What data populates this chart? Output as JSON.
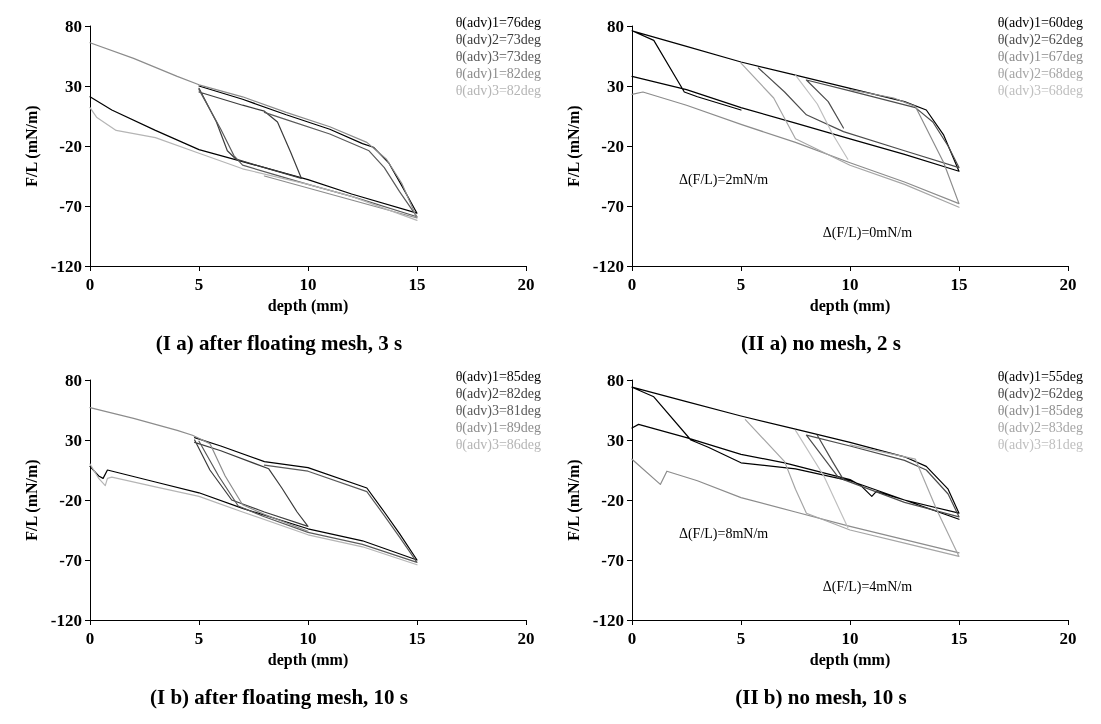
{
  "chart_data": [
    {
      "type": "line",
      "title": "(I a) after floating mesh, 3 s",
      "xlabel": "depth (mm)",
      "ylabel": "F/L (mN/m)",
      "xlim": [
        0,
        20
      ],
      "ylim": [
        -120,
        80
      ],
      "xticks": [
        0,
        5,
        10,
        15,
        20
      ],
      "yticks": [
        -120,
        -70,
        -20,
        30,
        80
      ],
      "legend": "top right",
      "series": [
        {
          "name": "θ(adv)1=76deg",
          "color": "#000000",
          "x": [
            0,
            1,
            3,
            5,
            7,
            10,
            12,
            15,
            14.3,
            13.7,
            13,
            12.5,
            11,
            9,
            7,
            5
          ],
          "values": [
            21,
            10,
            -7,
            -23,
            -33,
            -48,
            -60,
            -76,
            -53,
            -34,
            -21,
            -18,
            -6,
            6,
            19,
            30
          ]
        },
        {
          "name": "θ(adv)2=73deg",
          "color": "#3c3c3c",
          "x": [
            5,
            5.8,
            6.3,
            6.7,
            8,
            9.7,
            9.2,
            8.6,
            8,
            7,
            5
          ],
          "values": [
            28,
            0,
            -24,
            -31,
            -38,
            -47,
            -25,
            0,
            9,
            14,
            25
          ]
        },
        {
          "name": "θ(adv)3=73deg",
          "color": "#5a5a5a",
          "x": [
            5,
            6,
            6.6,
            7,
            8.5,
            9.8,
            10,
            12,
            15,
            14.2,
            13.5,
            12.8,
            11,
            9,
            8
          ],
          "values": [
            27,
            -6,
            -28,
            -36,
            -44,
            -51,
            -52,
            -62,
            -79,
            -58,
            -38,
            -24,
            -10,
            2,
            8
          ]
        },
        {
          "name": "θ(adv)1=82deg",
          "color": "#8c8c8c",
          "x": [
            0,
            2,
            4,
            5,
            7,
            9,
            11,
            12.7,
            13.6,
            14.3,
            15,
            12,
            10,
            8
          ],
          "values": [
            66,
            53,
            38,
            31,
            21,
            8,
            -4,
            -17,
            -31,
            -51,
            -80,
            -65,
            -55,
            -45
          ]
        },
        {
          "name": "θ(adv)3=82deg",
          "color": "#b5b5b5",
          "x": [
            0,
            0.3,
            1.2,
            3,
            5,
            7,
            10,
            12,
            15
          ],
          "values": [
            12,
            4,
            -7,
            -13,
            -26,
            -39,
            -52,
            -62,
            -82
          ]
        }
      ]
    },
    {
      "type": "line",
      "title": "(II a) no mesh, 2 s",
      "xlabel": "depth (mm)",
      "ylabel": "F/L (mN/m)",
      "xlim": [
        0,
        20
      ],
      "ylim": [
        -120,
        80
      ],
      "xticks": [
        0,
        5,
        10,
        15,
        20
      ],
      "yticks": [
        -120,
        -70,
        -20,
        30,
        80
      ],
      "legend": "top right",
      "annotations": [
        "Δ(F/L)=2mN/m",
        "Δ(F/L)=0mN/m"
      ],
      "series": [
        {
          "name": "θ(adv)1=60deg",
          "color": "#000000",
          "x": [
            0,
            2.5,
            5,
            7.5,
            10,
            12.5,
            15,
            14.3,
            13.5,
            12.5,
            10,
            7.5,
            5,
            2.5,
            0,
            1,
            2.4,
            3,
            5
          ],
          "values": [
            38,
            27,
            12,
            -1,
            -14,
            -27,
            -41,
            -11,
            10,
            17,
            28,
            39,
            50,
            63,
            76,
            68,
            25,
            21,
            10
          ]
        },
        {
          "name": "θ(adv)2=62deg",
          "color": "#4d4d4d",
          "x": [
            5.8,
            7,
            8,
            9.7,
            12.5,
            15,
            14.5,
            13.8,
            13,
            10,
            8,
            9,
            9.7
          ],
          "values": [
            45,
            25,
            6,
            -8,
            -24,
            -38,
            -20,
            0,
            12,
            26,
            35,
            17,
            -5
          ]
        },
        {
          "name": "θ(adv)1=67deg",
          "color": "#8c8c8c",
          "x": [
            0,
            0.5,
            2.5,
            5,
            7.5,
            10,
            12.5,
            15,
            14.3,
            13,
            12,
            10
          ],
          "values": [
            23,
            25,
            14,
            -2,
            -17,
            -34,
            -50,
            -68,
            -34,
            13,
            20,
            27
          ]
        },
        {
          "name": "θ(adv)2=68deg",
          "color": "#a6a6a6",
          "x": [
            5,
            6.5,
            7.5,
            10,
            12.5,
            15
          ],
          "values": [
            49,
            20,
            -14,
            -36,
            -52,
            -71
          ]
        },
        {
          "name": "θ(adv)3=68deg",
          "color": "#bfbfbf",
          "x": [
            7.5,
            8.5,
            9.2,
            9.9
          ],
          "values": [
            39,
            15,
            -10,
            -31
          ]
        }
      ]
    },
    {
      "type": "line",
      "title": "(I b) after floating mesh, 10 s",
      "xlabel": "depth (mm)",
      "ylabel": "F/L (mN/m)",
      "xlim": [
        0,
        20
      ],
      "ylim": [
        -120,
        80
      ],
      "xticks": [
        0,
        5,
        10,
        15,
        20
      ],
      "yticks": [
        -120,
        -70,
        -20,
        30,
        80
      ],
      "legend": "top right",
      "series": [
        {
          "name": "θ(adv)1=85deg",
          "color": "#000000",
          "x": [
            0,
            0.4,
            0.6,
            0.8,
            3,
            5,
            7,
            10,
            12.5,
            15,
            14.2,
            13.5,
            12.7,
            10,
            8,
            6,
            4.8
          ],
          "values": [
            8,
            0,
            -2,
            5,
            -5,
            -14,
            -27,
            -44,
            -54,
            -70,
            -48,
            -30,
            -10,
            7,
            12,
            25,
            32
          ]
        },
        {
          "name": "θ(adv)2=82deg",
          "color": "#3c3c3c",
          "x": [
            4.8,
            5.5,
            6.5,
            8,
            10,
            9.5,
            8.8,
            8.2,
            6,
            4.8
          ],
          "values": [
            30,
            5,
            -20,
            -30,
            -42,
            -30,
            -10,
            6,
            21,
            28
          ]
        },
        {
          "name": "θ(adv)3=81deg",
          "color": "#5a5a5a",
          "x": [
            5,
            5.9,
            6.8,
            8,
            10,
            12.5,
            15,
            14.2,
            13.5,
            12.7,
            10,
            8
          ],
          "values": [
            29,
            0,
            -25,
            -34,
            -47,
            -57,
            -72,
            -51,
            -33,
            -13,
            4,
            9
          ]
        },
        {
          "name": "θ(adv)1=89deg",
          "color": "#8c8c8c",
          "x": [
            0,
            2,
            4,
            4.7,
            5.5,
            6.2,
            7,
            8,
            10
          ],
          "values": [
            57,
            48,
            38,
            34,
            27,
            0,
            -24,
            -32,
            -46
          ]
        },
        {
          "name": "θ(adv)3=86deg",
          "color": "#b5b5b5",
          "x": [
            0,
            0.4,
            0.7,
            0.8,
            1,
            3,
            5,
            7,
            10,
            12.5,
            15
          ],
          "values": [
            10,
            -2,
            -8,
            -2,
            -1,
            -9,
            -17,
            -30,
            -49,
            -59,
            -74
          ]
        }
      ]
    },
    {
      "type": "line",
      "title": "(II b) no mesh, 10 s",
      "xlabel": "depth (mm)",
      "ylabel": "F/L (mN/m)",
      "xlim": [
        0,
        20
      ],
      "ylim": [
        -120,
        80
      ],
      "xticks": [
        0,
        5,
        10,
        15,
        20
      ],
      "yticks": [
        -120,
        -70,
        -20,
        30,
        80
      ],
      "legend": "top right",
      "annotations": [
        "Δ(F/L)=8mN/m",
        "Δ(F/L)=4mN/m"
      ],
      "series": [
        {
          "name": "θ(adv)1=55deg",
          "color": "#000000",
          "x": [
            0,
            0.3,
            2.5,
            5,
            7,
            10,
            10.5,
            11,
            11.2,
            12.5,
            15,
            14.5,
            13.5,
            12.5,
            10,
            7.5,
            5,
            2.5,
            0,
            1,
            2.7,
            3.5,
            5,
            7.5,
            10,
            12.5,
            15
          ],
          "values": [
            40,
            43,
            32,
            18,
            11,
            -3,
            -8,
            -17,
            -13,
            -20,
            -31,
            -11,
            8,
            16,
            28,
            39,
            50,
            62,
            74,
            66,
            30,
            24,
            11,
            6,
            -4,
            -20,
            -36
          ]
        },
        {
          "name": "θ(adv)2=62deg",
          "color": "#4d4d4d",
          "x": [
            8.5,
            9.2,
            9.7,
            12.5,
            15,
            14.5,
            13.5,
            12.5,
            10,
            8,
            9.5
          ],
          "values": [
            34,
            12,
            -3,
            -22,
            -34,
            -15,
            5,
            13,
            25,
            34,
            -2
          ]
        },
        {
          "name": "θ(adv)1=85deg",
          "color": "#8c8c8c",
          "x": [
            0,
            1.3,
            1.6,
            3,
            5,
            7.5,
            10,
            12.5,
            15
          ],
          "values": [
            14,
            -7,
            4,
            -4,
            -18,
            -30,
            -42,
            -53,
            -64
          ]
        },
        {
          "name": "θ(adv)2=83deg",
          "color": "#a6a6a6",
          "x": [
            5.2,
            7,
            7.5,
            8,
            10,
            12.5,
            15,
            14,
            13,
            10
          ],
          "values": [
            47,
            12,
            -11,
            -31,
            -45,
            -56,
            -67,
            -29,
            14,
            26
          ]
        },
        {
          "name": "θ(adv)3=81deg",
          "color": "#bfbfbf",
          "x": [
            7.5,
            8.8,
            9.9
          ],
          "values": [
            38,
            0,
            -43
          ]
        }
      ]
    }
  ]
}
